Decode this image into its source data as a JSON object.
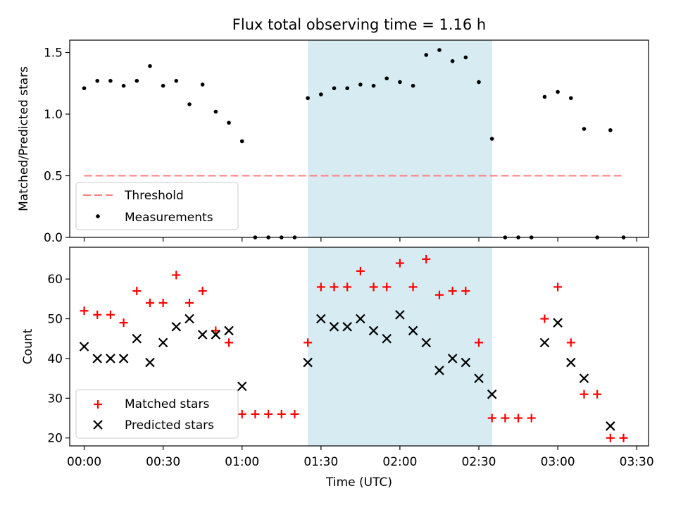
{
  "chart_data": {
    "title": "Flux total observing time = 1.16 h",
    "xlabel": "Time (UTC)",
    "x_ticks": [
      "00:00",
      "00:30",
      "01:00",
      "01:30",
      "02:00",
      "02:30",
      "03:00",
      "03:30"
    ],
    "x_tick_minutes": [
      0,
      30,
      60,
      90,
      120,
      150,
      180,
      210
    ],
    "xlim_minutes": [
      -5.5,
      214.5
    ],
    "shaded_span_minutes": [
      85,
      155
    ],
    "shade_color": "#add8e6",
    "panels": [
      {
        "type": "scatter",
        "ylabel": "Matched/Predicted stars",
        "ylim": [
          0,
          1.6
        ],
        "y_ticks": [
          "0.0",
          "0.5",
          "1.0",
          "1.5"
        ],
        "y_tick_values": [
          0,
          0.5,
          1.0,
          1.5
        ],
        "threshold": {
          "name": "Threshold",
          "value": 0.5,
          "x_range_minutes": [
            0,
            205
          ],
          "color": "#ff7f7f",
          "style": "dashed"
        },
        "legend_position": "lower-left",
        "series": [
          {
            "name": "Measurements",
            "marker": "dot",
            "color": "#000000",
            "x": [
              0,
              5,
              10,
              15,
              20,
              25,
              30,
              35,
              40,
              45,
              50,
              55,
              60,
              65,
              70,
              75,
              80,
              85,
              90,
              95,
              100,
              105,
              110,
              115,
              120,
              125,
              130,
              135,
              140,
              145,
              150,
              155,
              160,
              165,
              170,
              175,
              180,
              185,
              190,
              195,
              200,
              205
            ],
            "y": [
              1.21,
              1.27,
              1.27,
              1.23,
              1.27,
              1.39,
              1.23,
              1.27,
              1.08,
              1.24,
              1.02,
              0.93,
              0.78,
              0,
              0,
              0,
              0,
              1.13,
              1.16,
              1.21,
              1.21,
              1.24,
              1.23,
              1.29,
              1.26,
              1.23,
              1.48,
              1.52,
              1.43,
              1.46,
              1.26,
              0.8,
              0,
              0,
              0,
              1.14,
              1.18,
              1.13,
              0.88,
              0,
              0.87,
              0
            ]
          }
        ]
      },
      {
        "type": "scatter",
        "ylabel": "Count",
        "ylim": [
          18,
          68
        ],
        "y_ticks": [
          "20",
          "30",
          "40",
          "50",
          "60"
        ],
        "y_tick_values": [
          20,
          30,
          40,
          50,
          60
        ],
        "legend_position": "lower-left",
        "series": [
          {
            "name": "Matched stars",
            "marker": "plus",
            "color": "#ff0000",
            "x": [
              0,
              5,
              10,
              15,
              20,
              25,
              30,
              35,
              40,
              45,
              50,
              55,
              60,
              65,
              70,
              75,
              80,
              85,
              90,
              95,
              100,
              105,
              110,
              115,
              120,
              125,
              130,
              135,
              140,
              145,
              150,
              155,
              160,
              165,
              170,
              175,
              180,
              185,
              190,
              195,
              200,
              205
            ],
            "y": [
              52,
              51,
              51,
              49,
              57,
              54,
              54,
              61,
              54,
              57,
              47,
              44,
              26,
              26,
              26,
              26,
              26,
              44,
              58,
              58,
              58,
              62,
              58,
              58,
              64,
              58,
              65,
              56,
              57,
              57,
              44,
              25,
              25,
              25,
              25,
              50,
              58,
              44,
              31,
              31,
              20,
              20
            ]
          },
          {
            "name": "Predicted stars",
            "marker": "x",
            "color": "#000000",
            "x": [
              0,
              5,
              10,
              15,
              20,
              25,
              30,
              35,
              40,
              45,
              50,
              55,
              60,
              85,
              90,
              95,
              100,
              105,
              110,
              115,
              120,
              125,
              130,
              135,
              140,
              145,
              150,
              155,
              175,
              180,
              185,
              190,
              200
            ],
            "y": [
              43,
              40,
              40,
              40,
              45,
              39,
              44,
              48,
              50,
              46,
              46,
              47,
              33,
              39,
              50,
              48,
              48,
              50,
              47,
              45,
              51,
              47,
              44,
              37,
              40,
              39,
              35,
              31,
              44,
              49,
              39,
              35,
              23
            ]
          }
        ]
      }
    ]
  }
}
